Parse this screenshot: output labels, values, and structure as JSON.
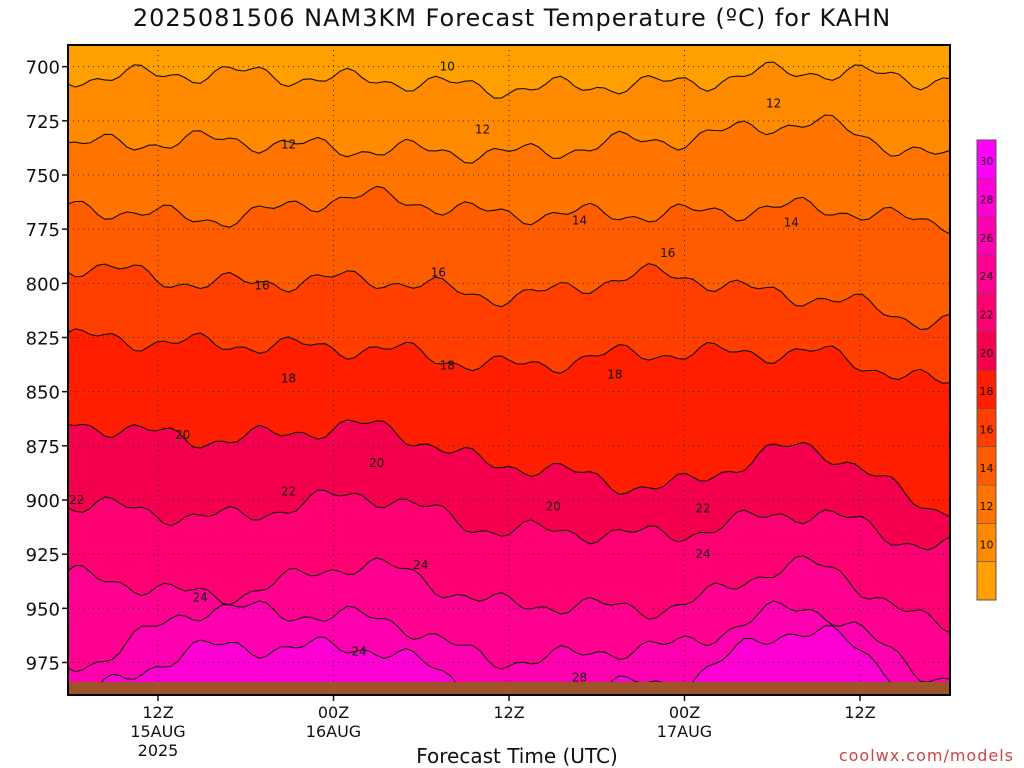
{
  "chart_data": {
    "type": "heatmap",
    "title": "2025081506 NAM3KM Forecast Temperature (ºC) for KAHN",
    "xlabel": "Forecast Time (UTC)",
    "ylabel": "",
    "y_axis": {
      "reversed": true,
      "ylim": [
        990,
        690
      ],
      "ticks": [
        700,
        725,
        750,
        775,
        800,
        825,
        850,
        875,
        900,
        925,
        950,
        975
      ]
    },
    "x_axis": {
      "ticks": [
        {
          "hour": "12Z",
          "date": "15AUG",
          "year": "2025"
        },
        {
          "hour": "00Z",
          "date": "16AUG",
          "year": ""
        },
        {
          "hour": "12Z",
          "date": "",
          "year": ""
        },
        {
          "hour": "00Z",
          "date": "17AUG",
          "year": ""
        },
        {
          "hour": "12Z",
          "date": "",
          "year": ""
        }
      ]
    },
    "grid": true,
    "colorbar": {
      "ticks": [
        10,
        12,
        14,
        16,
        18,
        20,
        22,
        24,
        26,
        28,
        30
      ],
      "colors": [
        "#ffa000",
        "#ff8a00",
        "#ff7300",
        "#ff5c00",
        "#ff3e00",
        "#ff1e00",
        "#f5004f",
        "#ff0072",
        "#ff0090",
        "#ff00b0",
        "#ff00d4",
        "#ff00ff"
      ]
    },
    "contour_levels": [
      {
        "level": 10,
        "pressure": [
          705,
          703,
          706,
          710,
          708,
          702,
          706
        ]
      },
      {
        "level": 12,
        "pressure": [
          736,
          734,
          738,
          740,
          734,
          726,
          742
        ]
      },
      {
        "level": 14,
        "pressure": [
          765,
          770,
          760,
          768,
          768,
          765,
          772
        ]
      },
      {
        "level": 16,
        "pressure": [
          792,
          800,
          798,
          806,
          796,
          806,
          818
        ]
      },
      {
        "level": 18,
        "pressure": [
          825,
          828,
          830,
          838,
          832,
          832,
          846
        ]
      },
      {
        "level": 20,
        "pressure": [
          865,
          872,
          866,
          884,
          894,
          876,
          904
        ]
      },
      {
        "level": 22,
        "pressure": [
          902,
          908,
          898,
          914,
          916,
          906,
          922
        ]
      },
      {
        "level": 24,
        "pressure": [
          935,
          944,
          930,
          948,
          950,
          930,
          958
        ]
      },
      {
        "level": 26,
        "pressure": [
          976,
          950,
          954,
          974,
          968,
          950,
          982
        ]
      },
      {
        "level": 28,
        "pressure": [
          990,
          968,
          968,
          990,
          985,
          960,
          990
        ]
      }
    ],
    "contour_labels": [
      {
        "text": "10",
        "x": 0.43,
        "p": 700
      },
      {
        "text": "12",
        "x": 0.25,
        "p": 736
      },
      {
        "text": "12",
        "x": 0.47,
        "p": 729
      },
      {
        "text": "12",
        "x": 0.8,
        "p": 717
      },
      {
        "text": "14",
        "x": 0.58,
        "p": 771
      },
      {
        "text": "14",
        "x": 0.82,
        "p": 772
      },
      {
        "text": "16",
        "x": 0.22,
        "p": 801
      },
      {
        "text": "16",
        "x": 0.42,
        "p": 795
      },
      {
        "text": "16",
        "x": 0.68,
        "p": 786
      },
      {
        "text": "18",
        "x": 0.25,
        "p": 844
      },
      {
        "text": "18",
        "x": 0.43,
        "p": 838
      },
      {
        "text": "18",
        "x": 0.62,
        "p": 842
      },
      {
        "text": "20",
        "x": 0.13,
        "p": 870
      },
      {
        "text": "20",
        "x": 0.35,
        "p": 883
      },
      {
        "text": "20",
        "x": 0.55,
        "p": 903
      },
      {
        "text": "22",
        "x": 0.01,
        "p": 900
      },
      {
        "text": "22",
        "x": 0.25,
        "p": 896
      },
      {
        "text": "22",
        "x": 0.72,
        "p": 904
      },
      {
        "text": "24",
        "x": 0.15,
        "p": 945
      },
      {
        "text": "24",
        "x": 0.4,
        "p": 930
      },
      {
        "text": "24",
        "x": 0.72,
        "p": 925
      },
      {
        "text": "24",
        "x": 0.33,
        "p": 970
      },
      {
        "text": "28",
        "x": 0.58,
        "p": 982
      }
    ]
  },
  "watermark": "coolwx.com/models"
}
